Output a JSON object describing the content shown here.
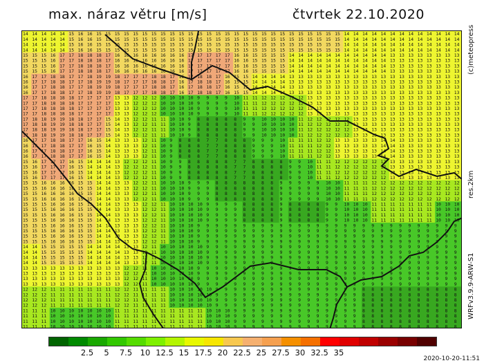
{
  "title": "max. náraz větru [m/s]",
  "date": "čtvrtek 22.10.2020",
  "credit": "(c)meteopress",
  "resolution": "res.2km",
  "model": "WRFv3.9.9-ARW-S1",
  "timestamp": "2020-10-20-11:51",
  "legend": {
    "colors": [
      "#006400",
      "#008a00",
      "#19a800",
      "#32c800",
      "#55dc00",
      "#7ef000",
      "#b4f500",
      "#e8f800",
      "#f7e600",
      "#f7c850",
      "#f5b070",
      "#f5a050",
      "#f59000",
      "#f57000",
      "#ff0000",
      "#e00000",
      "#c00000",
      "#9a0000",
      "#780000",
      "#500000"
    ],
    "ticks": [
      "2.5",
      "5",
      "7.5",
      "10",
      "12.5",
      "15",
      "17.5",
      "20",
      "22.5",
      "25",
      "27.5",
      "30",
      "32.5",
      "35"
    ]
  },
  "map": {
    "fill": {
      "high": "#f0a878",
      "mid": "#f2d860",
      "yellow": "#eef530",
      "lime": "#a8e820",
      "green": "#48c828",
      "dark": "#38a820"
    },
    "grid_values": [
      [
        14,
        14,
        14,
        14,
        14,
        15,
        16,
        16,
        15,
        15,
        15,
        15,
        15,
        15,
        15,
        15,
        15,
        15,
        15,
        15,
        15,
        15,
        15,
        15,
        15,
        15,
        15,
        15,
        15,
        15,
        15,
        15,
        15,
        15,
        15,
        14,
        14,
        14,
        14,
        14,
        14,
        14,
        14,
        14,
        14,
        14,
        14,
        14
      ],
      [
        15,
        15,
        15,
        16,
        17,
        17,
        18,
        18,
        18,
        17,
        16,
        16,
        16,
        16,
        16,
        16,
        16,
        16,
        17,
        17,
        17,
        17,
        17,
        16,
        16,
        15,
        15,
        15,
        15,
        14,
        14,
        14,
        14,
        14,
        14,
        14,
        14,
        14,
        14,
        14,
        13,
        13,
        13,
        13,
        13,
        13,
        13,
        13
      ],
      [
        16,
        17,
        17,
        18,
        18,
        17,
        17,
        18,
        19,
        19,
        18,
        17,
        17,
        17,
        18,
        18,
        17,
        16,
        17,
        18,
        18,
        17,
        16,
        15,
        15,
        14,
        14,
        14,
        14,
        13,
        13,
        13,
        13,
        13,
        13,
        13,
        13,
        13,
        13,
        13,
        13,
        13,
        13,
        13,
        13,
        13,
        13,
        13
      ],
      [
        17,
        17,
        18,
        18,
        18,
        18,
        17,
        17,
        17,
        17,
        13,
        13,
        12,
        12,
        12,
        10,
        10,
        10,
        10,
        9,
        9,
        9,
        9,
        10,
        11,
        11,
        12,
        12,
        12,
        12,
        12,
        13,
        13,
        13,
        13,
        13,
        13,
        13,
        13,
        13,
        13,
        13,
        13,
        13,
        13,
        13,
        13,
        13
      ],
      [
        17,
        18,
        18,
        19,
        19,
        18,
        18,
        17,
        17,
        15,
        14,
        13,
        12,
        12,
        11,
        11,
        10,
        10,
        9,
        8,
        8,
        8,
        8,
        8,
        9,
        9,
        10,
        10,
        10,
        10,
        11,
        12,
        12,
        12,
        12,
        12,
        13,
        13,
        13,
        13,
        13,
        13,
        13,
        13,
        13,
        13,
        13,
        13
      ],
      [
        16,
        17,
        17,
        18,
        18,
        17,
        17,
        16,
        15,
        14,
        13,
        13,
        13,
        12,
        11,
        10,
        9,
        8,
        8,
        8,
        7,
        7,
        8,
        8,
        8,
        9,
        9,
        9,
        10,
        11,
        11,
        11,
        12,
        12,
        13,
        13,
        13,
        13,
        13,
        14,
        14,
        13,
        13,
        13,
        13,
        13,
        13,
        13
      ],
      [
        15,
        16,
        17,
        17,
        17,
        16,
        15,
        14,
        14,
        14,
        13,
        12,
        12,
        12,
        11,
        10,
        9,
        9,
        8,
        8,
        8,
        8,
        8,
        7,
        7,
        8,
        8,
        8,
        8,
        9,
        9,
        10,
        11,
        11,
        12,
        12,
        12,
        12,
        12,
        12,
        13,
        13,
        13,
        13,
        13,
        13,
        13,
        13
      ],
      [
        15,
        15,
        16,
        16,
        16,
        16,
        15,
        15,
        14,
        14,
        13,
        13,
        12,
        12,
        11,
        10,
        10,
        10,
        9,
        9,
        9,
        8,
        8,
        8,
        8,
        8,
        8,
        8,
        9,
        9,
        9,
        9,
        9,
        10,
        10,
        11,
        11,
        11,
        12,
        12,
        12,
        12,
        12,
        12,
        12,
        12,
        12,
        12
      ],
      [
        15,
        15,
        15,
        16,
        16,
        16,
        15,
        15,
        14,
        14,
        13,
        13,
        13,
        12,
        12,
        11,
        10,
        10,
        10,
        10,
        9,
        9,
        9,
        9,
        8,
        8,
        8,
        8,
        9,
        8,
        8,
        8,
        8,
        9,
        9,
        10,
        10,
        10,
        11,
        11,
        11,
        11,
        11,
        11,
        11,
        10,
        10,
        10
      ],
      [
        15,
        15,
        15,
        16,
        16,
        16,
        15,
        15,
        14,
        14,
        13,
        13,
        13,
        12,
        12,
        11,
        10,
        10,
        10,
        9,
        9,
        9,
        9,
        9,
        9,
        9,
        9,
        9,
        9,
        9,
        9,
        9,
        9,
        9,
        9,
        9,
        9,
        9,
        9,
        9,
        9,
        9,
        9,
        9,
        9,
        9,
        9,
        9
      ],
      [
        14,
        14,
        15,
        15,
        15,
        15,
        15,
        14,
        14,
        14,
        14,
        13,
        13,
        12,
        11,
        10,
        10,
        10,
        10,
        10,
        9,
        9,
        9,
        9,
        9,
        9,
        9,
        9,
        9,
        9,
        9,
        9,
        9,
        9,
        9,
        9,
        9,
        9,
        9,
        9,
        9,
        9,
        9,
        9,
        9,
        9,
        9,
        9
      ],
      [
        13,
        13,
        13,
        13,
        13,
        13,
        13,
        13,
        13,
        13,
        13,
        12,
        12,
        11,
        10,
        10,
        10,
        10,
        10,
        9,
        9,
        9,
        9,
        9,
        9,
        9,
        9,
        9,
        9,
        9,
        9,
        9,
        9,
        9,
        9,
        9,
        9,
        9,
        9,
        9,
        9,
        9,
        9,
        9,
        9,
        9,
        9,
        9
      ],
      [
        12,
        12,
        12,
        11,
        11,
        11,
        11,
        11,
        11,
        11,
        12,
        12,
        11,
        11,
        11,
        11,
        10,
        10,
        10,
        10,
        10,
        9,
        9,
        9,
        9,
        9,
        9,
        9,
        9,
        9,
        9,
        9,
        9,
        9,
        9,
        9,
        9,
        8,
        8,
        8,
        8,
        8,
        8,
        8,
        8,
        8,
        8,
        8
      ],
      [
        11,
        11,
        11,
        10,
        10,
        10,
        10,
        10,
        10,
        10,
        11,
        11,
        11,
        11,
        11,
        11,
        11,
        11,
        11,
        11,
        10,
        10,
        10,
        9,
        9,
        9,
        9,
        9,
        9,
        9,
        9,
        9,
        9,
        9,
        9,
        9,
        9,
        8,
        8,
        8,
        8,
        8,
        8,
        8,
        8,
        8,
        8,
        8
      ]
    ],
    "labels": {}
  }
}
